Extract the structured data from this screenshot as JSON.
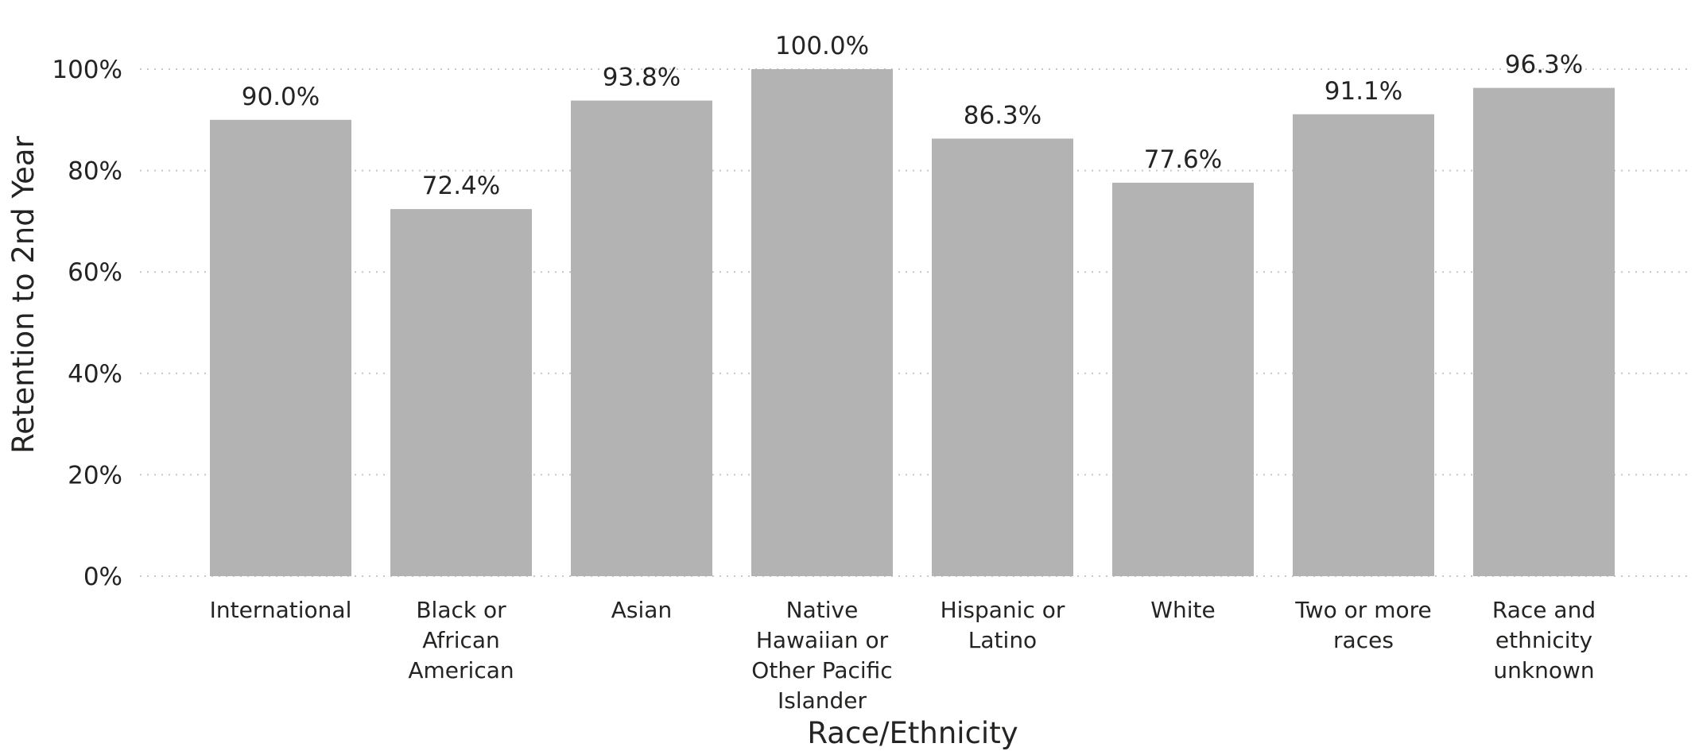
{
  "chart_data": {
    "type": "bar",
    "categories": [
      [
        "International"
      ],
      [
        "Black or",
        "African",
        "American"
      ],
      [
        "Asian"
      ],
      [
        "Native",
        "Hawaiian or",
        "Other Pacific",
        "Islander"
      ],
      [
        "Hispanic or",
        "Latino"
      ],
      [
        "White"
      ],
      [
        "Two or more",
        "races"
      ],
      [
        "Race and",
        "ethnicity",
        "unknown"
      ]
    ],
    "values": [
      90.0,
      72.4,
      93.8,
      100.0,
      86.3,
      77.6,
      91.1,
      96.3
    ],
    "value_labels": [
      "90.0%",
      "72.4%",
      "93.8%",
      "100.0%",
      "86.3%",
      "77.6%",
      "91.1%",
      "96.3%"
    ],
    "y_ticks": [
      0,
      20,
      40,
      60,
      80,
      100
    ],
    "y_tick_labels": [
      "0%",
      "20%",
      "40%",
      "60%",
      "80%",
      "100%"
    ],
    "ylim": [
      0,
      100
    ],
    "xlabel": "Race/Ethnicity",
    "ylabel": "Retention to 2nd Year",
    "grid": true,
    "legend": "none",
    "bar_color": "#b3b3b3",
    "grid_color": "#c8c6c4",
    "text_color": "#252423"
  }
}
